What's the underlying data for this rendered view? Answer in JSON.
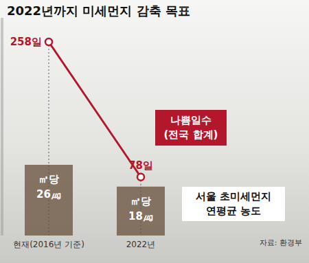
{
  "chart_data": {
    "type": "bar",
    "title": "2022년까지 미세먼지 감축 목표",
    "categories": [
      "현재(2016년 기준)",
      "2022년"
    ],
    "series": [
      {
        "name": "서울 초미세먼지\n연평균 농도",
        "type": "bar",
        "color": "#7a6654",
        "values": [
          26,
          18
        ],
        "value_labels": [
          "㎥당 26㎍",
          "㎥당 18㎍"
        ]
      },
      {
        "name": "나쁨일수\n(전국 합계)",
        "type": "line",
        "axis": "y2",
        "color": "#b3172c",
        "marker": "circle",
        "line_style": "solid",
        "values": [
          258,
          78
        ],
        "value_labels": [
          "258일",
          "78일"
        ]
      }
    ],
    "ylim": [
      0,
      80
    ],
    "y2lim": [
      0,
      290
    ],
    "tick_labels": "x",
    "data_labels": true,
    "source": "자료: 환경부"
  }
}
